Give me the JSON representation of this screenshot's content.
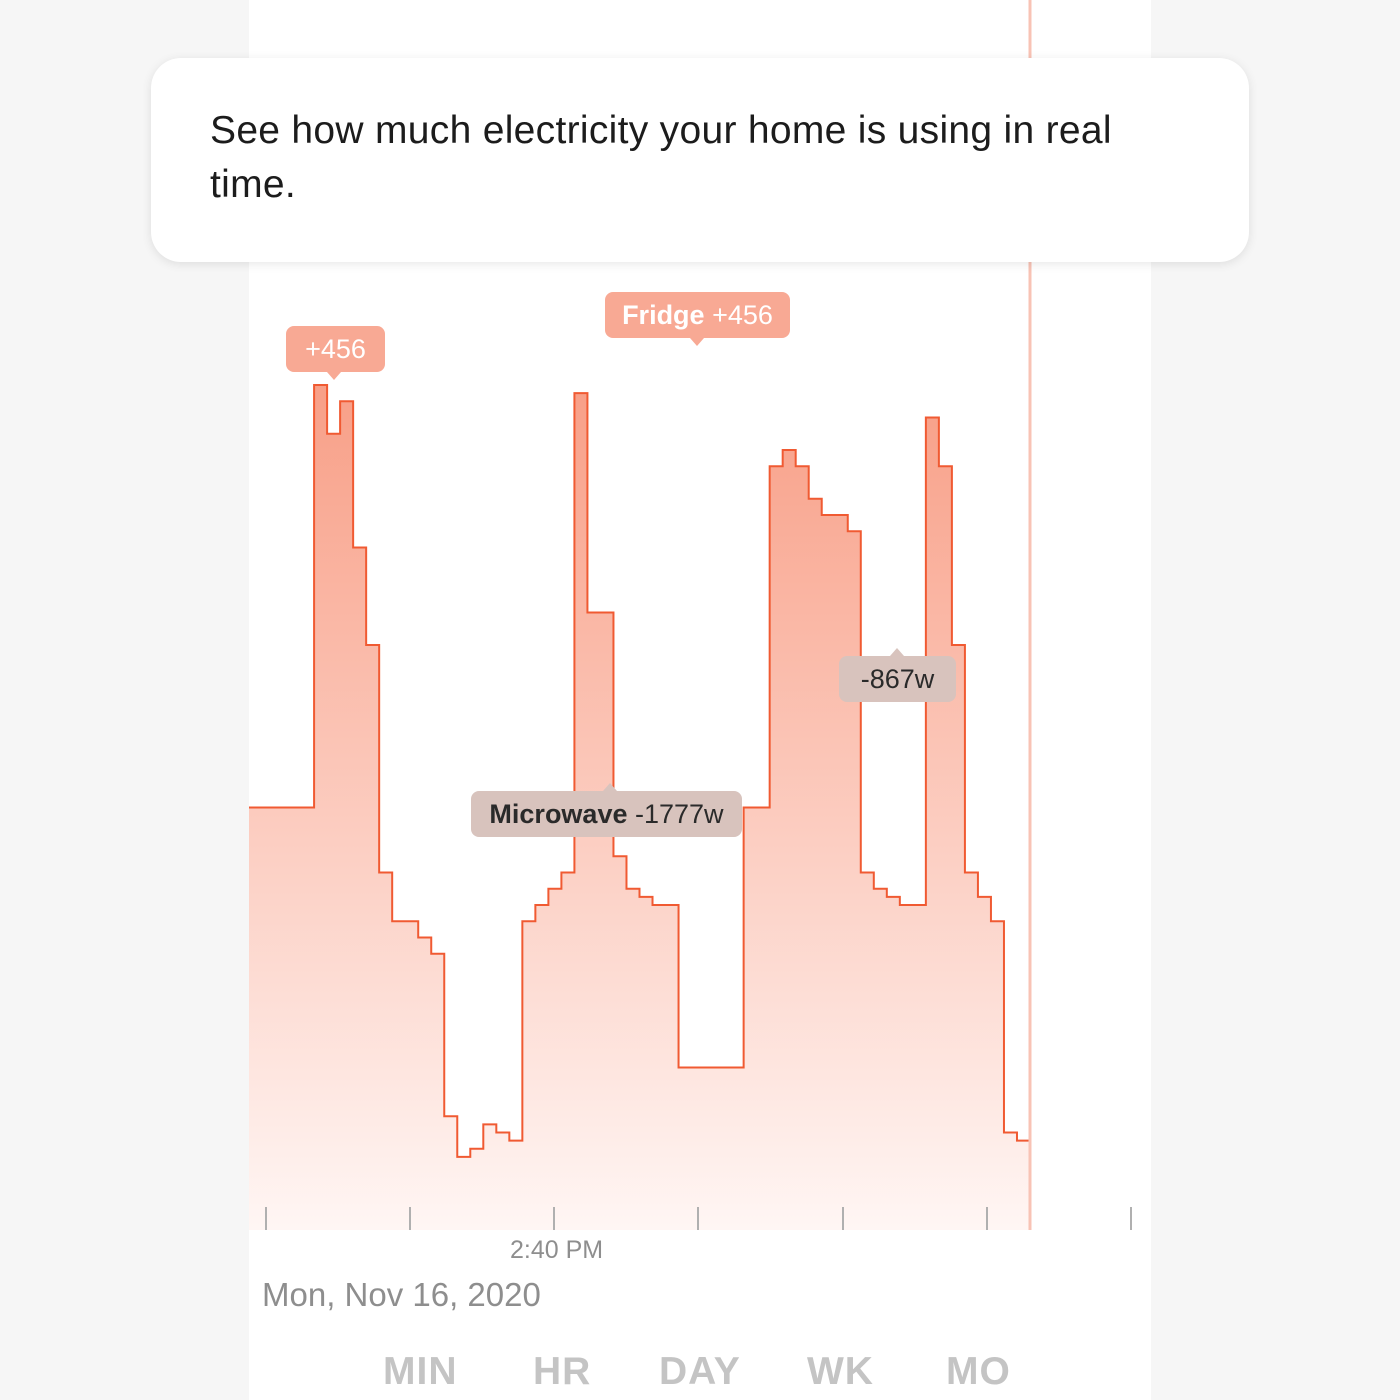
{
  "callout": {
    "text": "See how much electricity your home is using in real time."
  },
  "colors": {
    "line": "#f05a32",
    "fill_top": "#f89f87",
    "fill_bottom": "#fff6f4",
    "cursor": "#f8c3b5",
    "positive_tag": "#f8a994",
    "negative_tag": "#d8c3bd"
  },
  "annotations": [
    {
      "device": "",
      "value": "+456",
      "kind": "positive"
    },
    {
      "device": "Fridge",
      "value": "+456",
      "kind": "positive"
    },
    {
      "device": "Microwave",
      "value": "-1777w",
      "kind": "negative"
    },
    {
      "device": "",
      "value": "-867w",
      "kind": "negative"
    }
  ],
  "axis": {
    "time_label": "2:40 PM",
    "date_label": "Mon, Nov 16, 2020"
  },
  "range_tabs": [
    "MIN",
    "HR",
    "DAY",
    "WK",
    "MO"
  ],
  "chart_data": {
    "type": "area",
    "note_units": "watts (relative power draw, estimated)",
    "x": [
      0,
      2,
      4,
      6,
      8,
      10,
      12,
      14,
      16,
      18,
      20,
      22,
      24,
      26,
      28,
      30,
      32,
      34,
      36,
      38,
      40,
      42,
      44,
      46,
      48,
      50,
      52,
      54,
      56,
      58,
      60,
      62,
      64,
      66,
      68,
      70,
      72,
      74,
      76,
      78,
      80,
      82,
      84,
      86,
      88,
      90,
      92,
      94,
      96,
      98,
      100,
      102,
      104,
      106,
      108,
      110,
      112,
      114,
      116,
      118,
      120
    ],
    "values": [
      2600,
      2600,
      2600,
      2600,
      2600,
      5200,
      4900,
      5100,
      4200,
      3600,
      2200,
      1900,
      1900,
      1800,
      1700,
      700,
      450,
      500,
      650,
      600,
      550,
      1900,
      2000,
      2100,
      2200,
      5150,
      3800,
      3800,
      2300,
      2100,
      2050,
      2000,
      2000,
      1000,
      1000,
      1000,
      1000,
      1000,
      2600,
      2600,
      4700,
      4800,
      4700,
      4500,
      4400,
      4400,
      4300,
      2200,
      2100,
      2050,
      2000,
      2000,
      5000,
      4700,
      3600,
      2200,
      2050,
      1900,
      600,
      550,
      850
    ],
    "ylim": [
      0,
      5600
    ]
  }
}
